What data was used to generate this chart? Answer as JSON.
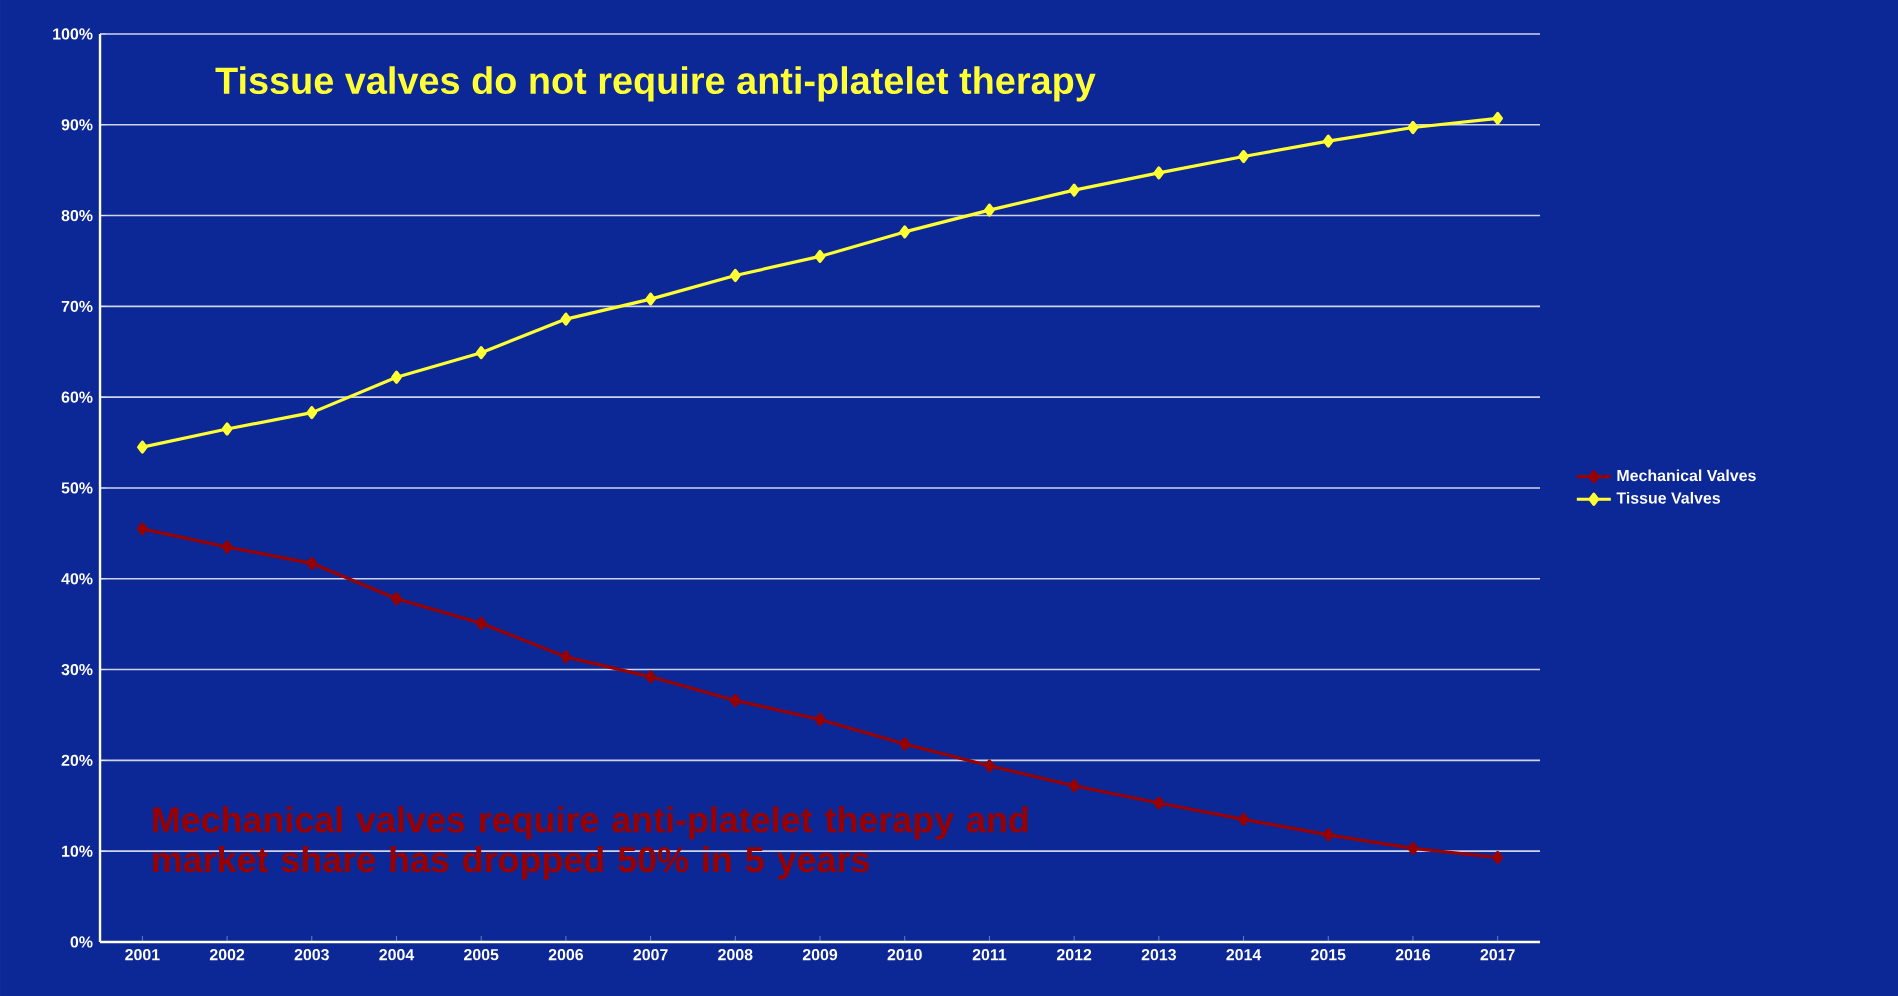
{
  "chart_data": {
    "type": "line",
    "categories": [
      "2001",
      "2002",
      "2003",
      "2004",
      "2005",
      "2006",
      "2007",
      "2008",
      "2009",
      "2010",
      "2011",
      "2012",
      "2013",
      "2014",
      "2015",
      "2016",
      "2017"
    ],
    "series": [
      {
        "name": "Mechanical Valves",
        "color": "#990000",
        "values": [
          45.5,
          43.5,
          41.7,
          37.8,
          35.1,
          31.4,
          29.2,
          26.6,
          24.5,
          21.8,
          19.4,
          17.2,
          15.3,
          13.5,
          11.8,
          10.3,
          9.3
        ]
      },
      {
        "name": "Tissue Valves",
        "color": "#ffff33",
        "values": [
          54.5,
          56.5,
          58.3,
          62.2,
          64.9,
          68.6,
          70.8,
          73.4,
          75.5,
          78.2,
          80.6,
          82.8,
          84.7,
          86.5,
          88.2,
          89.7,
          90.7
        ]
      }
    ],
    "ylim": [
      0,
      100
    ],
    "yticks": [
      {
        "value": 0,
        "label": "0%"
      },
      {
        "value": 10,
        "label": "10%"
      },
      {
        "value": 20,
        "label": "20%"
      },
      {
        "value": 30,
        "label": "30%"
      },
      {
        "value": 40,
        "label": "40%"
      },
      {
        "value": 50,
        "label": "50%"
      },
      {
        "value": 60,
        "label": "60%"
      },
      {
        "value": 70,
        "label": "70%"
      },
      {
        "value": 80,
        "label": "80%"
      },
      {
        "value": 90,
        "label": "90%"
      },
      {
        "value": 100,
        "label": "100%"
      }
    ],
    "annotations": [
      "Tissue valves do not require anti-platelet therapy",
      "Mechanical valves require anti-platelet therapy and market share has dropped 50% in 5 years"
    ],
    "grid": "y",
    "legend": "right",
    "marker": "diamond",
    "line_style": "solid"
  }
}
